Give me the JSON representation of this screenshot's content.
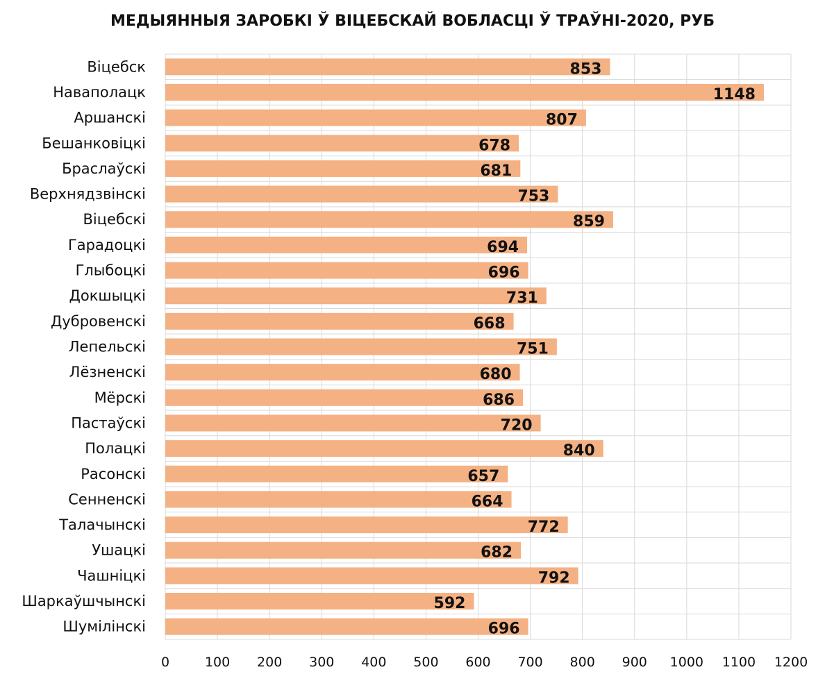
{
  "chart_data": {
    "type": "bar",
    "orientation": "horizontal",
    "title": "МЕДЫЯННЫЯ ЗАРОБКІ Ў ВІЦЕБСКАЙ ВОБЛАСЦІ Ў ТРАЎНІ-2020, РУБ",
    "xlabel": "",
    "ylabel": "",
    "categories": [
      "Віцебск",
      "Наваполацк",
      "Аршанскі",
      "Бешанковіцкі",
      "Браслаўскі",
      "Верхнядзвінскі",
      "Віцебскі",
      "Гарадоцкі",
      "Глыбоцкі",
      "Докшыцкі",
      "Дубровенскі",
      "Лепельскі",
      "Лёзненскі",
      "Мёрскі",
      "Пастаўскі",
      "Полацкі",
      "Расонскі",
      "Сенненскі",
      "Талачынскі",
      "Ушацкі",
      "Чашніцкі",
      "Шаркаўшчынскі",
      "Шумілінскі"
    ],
    "values": [
      853,
      1148,
      807,
      678,
      681,
      753,
      859,
      694,
      696,
      731,
      668,
      751,
      680,
      686,
      720,
      840,
      657,
      664,
      772,
      682,
      792,
      592,
      696
    ],
    "data_labels": [
      "853",
      "1148",
      "807",
      "678",
      "681",
      "753",
      "859",
      "694",
      "696",
      "731",
      "668",
      "751",
      "680",
      "686",
      "720",
      "840",
      "657",
      "664",
      "772",
      "682",
      "792",
      "592",
      "696"
    ],
    "xlim": [
      0,
      1200
    ],
    "xticks": [
      "0",
      "100",
      "200",
      "300",
      "400",
      "500",
      "600",
      "700",
      "800",
      "900",
      "1000",
      "1100",
      "1200"
    ],
    "grid": true,
    "legend": "none",
    "bar_color": "#f4b183",
    "grid_color": "#d9d9d9"
  }
}
